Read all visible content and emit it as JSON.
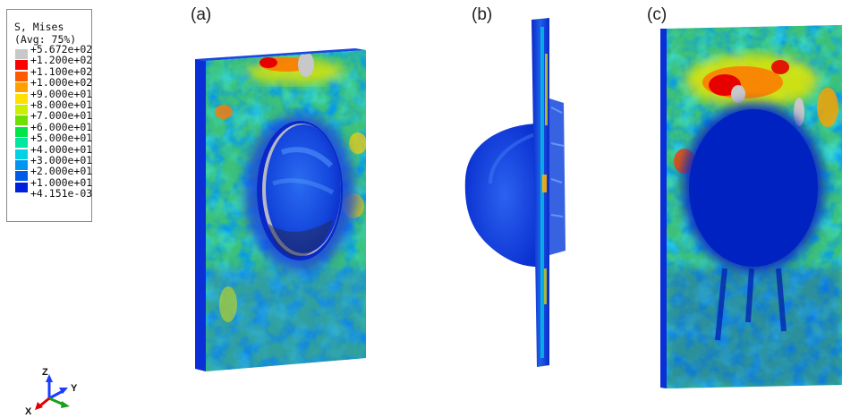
{
  "legend": {
    "title_line1": "S, Mises",
    "title_line2": "(Avg: 75%)",
    "entries": [
      {
        "value": "+5.672e+02",
        "color": "#c8c8c8"
      },
      {
        "value": "+1.200e+02",
        "color": "#ff0000"
      },
      {
        "value": "+1.100e+02",
        "color": "#ff5a00"
      },
      {
        "value": "+1.000e+02",
        "color": "#ffa000"
      },
      {
        "value": "+9.000e+01",
        "color": "#ffe000"
      },
      {
        "value": "+8.000e+01",
        "color": "#c8f000"
      },
      {
        "value": "+7.000e+01",
        "color": "#6ee000"
      },
      {
        "value": "+6.000e+01",
        "color": "#00e646"
      },
      {
        "value": "+5.000e+01",
        "color": "#00e6a0"
      },
      {
        "value": "+4.000e+01",
        "color": "#00d2e6"
      },
      {
        "value": "+3.000e+01",
        "color": "#0096f0"
      },
      {
        "value": "+2.000e+01",
        "color": "#005ae6"
      },
      {
        "value": "+1.000e+01",
        "color": "#0020dc"
      },
      {
        "value": "+4.151e-03",
        "color": "#0000c8"
      }
    ]
  },
  "panels": {
    "a": "(a)",
    "b": "(b)",
    "c": "(c)"
  },
  "triad": {
    "z": "Z",
    "y": "Y",
    "x": "X"
  },
  "colors": {
    "base_green": "#44c86e",
    "blue": "#1e50e6",
    "deep_blue": "#0a28d2",
    "cyan": "#00c8e0",
    "yellow": "#e6e600",
    "orange": "#ff7800",
    "red": "#e60000",
    "grey": "#c8c8c8"
  }
}
